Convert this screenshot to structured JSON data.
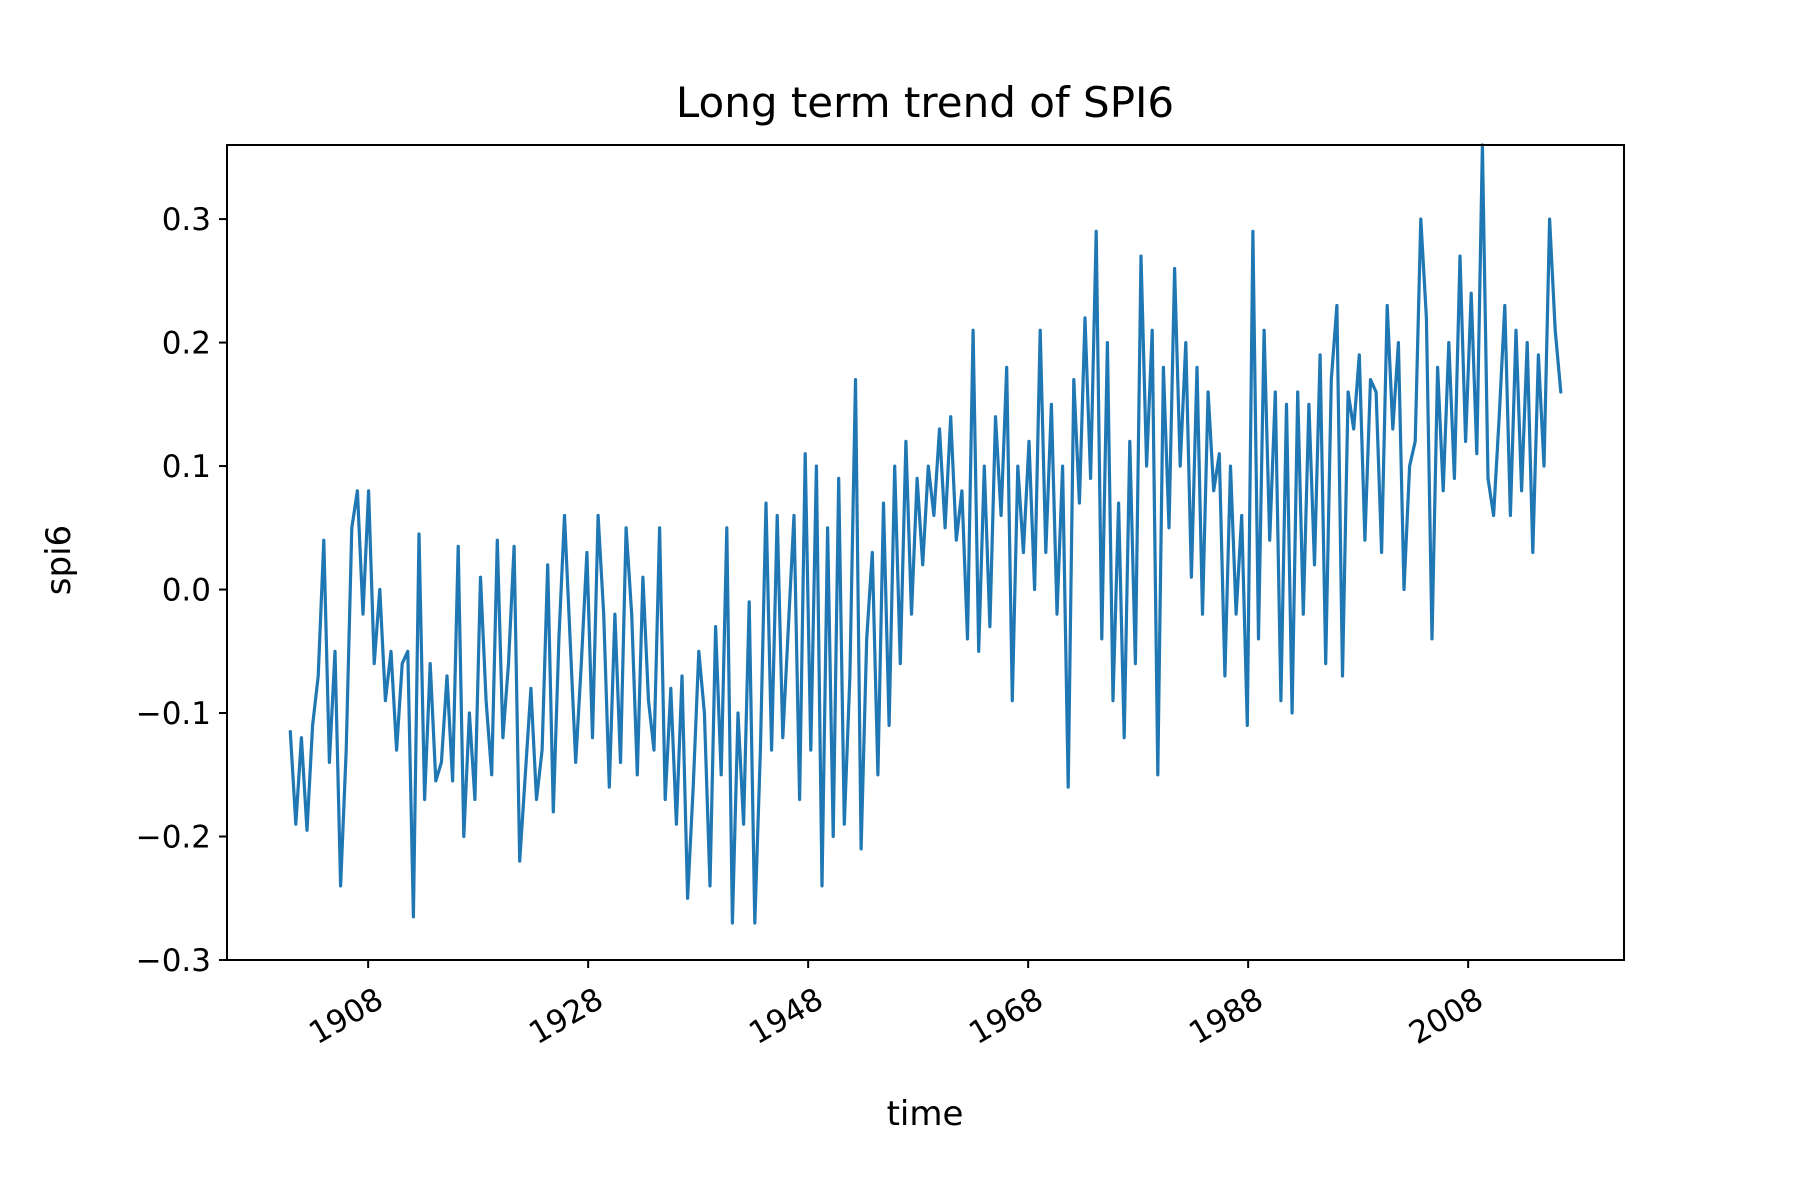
{
  "chart_data": {
    "type": "line",
    "title": "Long term trend of SPI6",
    "xlabel": "time",
    "ylabel": "spi6",
    "xlim": [
      "1895-09",
      "2022-09"
    ],
    "ylim": [
      -0.3,
      0.36
    ],
    "x_ticks": [
      "1908",
      "1928",
      "1948",
      "1968",
      "1988",
      "2008"
    ],
    "y_ticks": [
      "0.3",
      "0.2",
      "0.1",
      "0.0",
      "−0.1",
      "−0.2",
      "−0.3"
    ],
    "grid": false,
    "legend": "none",
    "line_color": "#1f77b4",
    "series": [
      {
        "x_start": "1901-06",
        "x_end": "2016-12",
        "step": "month (sampled at ~2.5-month intervals)",
        "values": [
          -0.115,
          -0.19,
          -0.12,
          -0.195,
          -0.11,
          -0.07,
          0.04,
          -0.14,
          -0.05,
          -0.24,
          -0.13,
          0.05,
          0.08,
          -0.02,
          0.08,
          -0.06,
          0.0,
          -0.09,
          -0.05,
          -0.13,
          -0.06,
          -0.05,
          -0.265,
          0.045,
          -0.17,
          -0.06,
          -0.155,
          -0.14,
          -0.07,
          -0.155,
          0.035,
          -0.2,
          -0.1,
          -0.17,
          0.01,
          -0.09,
          -0.15,
          0.04,
          -0.12,
          -0.06,
          0.035,
          -0.22,
          -0.15,
          -0.08,
          -0.17,
          -0.13,
          0.02,
          -0.18,
          -0.04,
          0.06,
          -0.04,
          -0.14,
          -0.06,
          0.03,
          -0.12,
          0.06,
          -0.02,
          -0.16,
          -0.02,
          -0.14,
          0.05,
          -0.02,
          -0.15,
          0.01,
          -0.09,
          -0.13,
          0.05,
          -0.17,
          -0.08,
          -0.19,
          -0.07,
          -0.25,
          -0.16,
          -0.05,
          -0.1,
          -0.24,
          -0.03,
          -0.15,
          0.05,
          -0.27,
          -0.1,
          -0.19,
          -0.01,
          -0.27,
          -0.13,
          0.07,
          -0.13,
          0.06,
          -0.12,
          -0.03,
          0.06,
          -0.17,
          0.11,
          -0.13,
          0.1,
          -0.24,
          0.05,
          -0.2,
          0.09,
          -0.19,
          -0.07,
          0.17,
          -0.21,
          -0.04,
          0.03,
          -0.15,
          0.07,
          -0.11,
          0.1,
          -0.06,
          0.12,
          -0.02,
          0.09,
          0.02,
          0.1,
          0.06,
          0.13,
          0.05,
          0.14,
          0.04,
          0.08,
          -0.04,
          0.21,
          -0.05,
          0.1,
          -0.03,
          0.14,
          0.06,
          0.18,
          -0.09,
          0.1,
          0.03,
          0.12,
          0.0,
          0.21,
          0.03,
          0.15,
          -0.02,
          0.1,
          -0.16,
          0.17,
          0.07,
          0.22,
          0.09,
          0.29,
          -0.04,
          0.2,
          -0.09,
          0.07,
          -0.12,
          0.12,
          -0.06,
          0.27,
          0.1,
          0.21,
          -0.15,
          0.18,
          0.05,
          0.26,
          0.1,
          0.2,
          0.01,
          0.18,
          -0.02,
          0.16,
          0.08,
          0.11,
          -0.07,
          0.1,
          -0.02,
          0.06,
          -0.11,
          0.29,
          -0.04,
          0.21,
          0.04,
          0.16,
          -0.09,
          0.15,
          -0.1,
          0.16,
          -0.02,
          0.15,
          0.02,
          0.19,
          -0.06,
          0.17,
          0.23,
          -0.07,
          0.16,
          0.13,
          0.19,
          0.04,
          0.17,
          0.16,
          0.03,
          0.23,
          0.13,
          0.2,
          0.0,
          0.1,
          0.12,
          0.3,
          0.22,
          -0.04,
          0.18,
          0.08,
          0.2,
          0.09,
          0.27,
          0.12,
          0.24,
          0.11,
          0.36,
          0.09,
          0.06,
          0.14,
          0.23,
          0.06,
          0.21,
          0.08,
          0.2,
          0.03,
          0.19,
          0.1,
          0.3,
          0.21,
          0.16
        ]
      }
    ]
  }
}
